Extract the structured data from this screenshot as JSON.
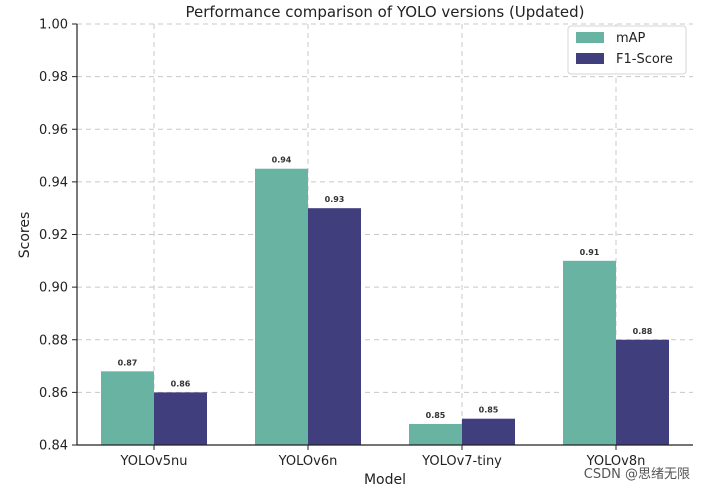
{
  "chart_data": {
    "type": "bar",
    "title": "Performance comparison of YOLO versions (Updated)",
    "xlabel": "Model",
    "ylabel": "Scores",
    "categories": [
      "YOLOv5nu",
      "YOLOv6n",
      "YOLOv7-tiny",
      "YOLOv8n"
    ],
    "series": [
      {
        "name": "mAP",
        "color": "#69b3a2",
        "values": [
          0.868,
          0.945,
          0.848,
          0.91
        ],
        "labels": [
          "0.87",
          "0.94",
          "0.85",
          "0.91"
        ]
      },
      {
        "name": "F1-Score",
        "color": "#413e7d",
        "values": [
          0.86,
          0.93,
          0.85,
          0.88
        ],
        "labels": [
          "0.86",
          "0.93",
          "0.85",
          "0.88"
        ]
      }
    ],
    "ylim": [
      0.84,
      1.0
    ],
    "yticks": [
      "0.84",
      "0.86",
      "0.88",
      "0.90",
      "0.92",
      "0.94",
      "0.96",
      "0.98",
      "1.00"
    ],
    "grid": true,
    "legend_position": "top-right"
  },
  "watermark": "CSDN @思绪无限"
}
